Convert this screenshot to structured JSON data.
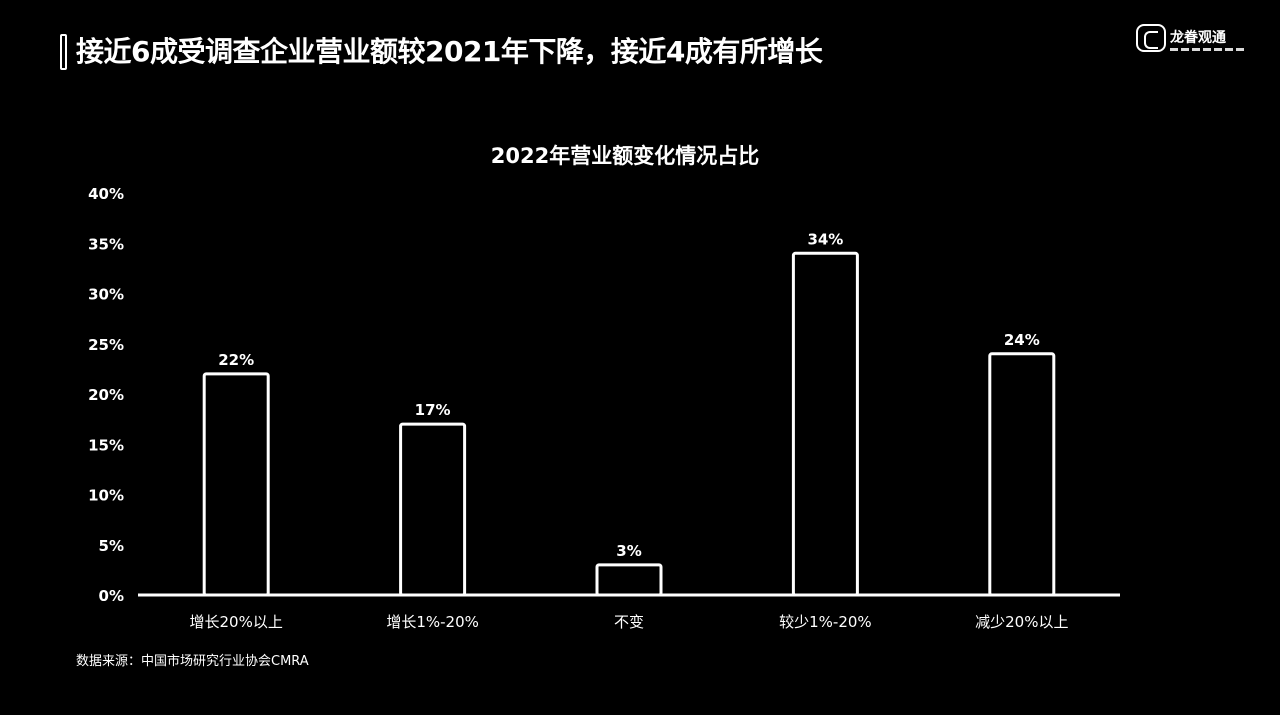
{
  "header": {
    "title": "接近6成受调查企业营业额较2021年下降，接近4成有所增长"
  },
  "logo": {
    "text": "龙眷观通"
  },
  "source": {
    "text": "数据来源：中国市场研究行业协会CMRA"
  },
  "chart_data": {
    "type": "bar",
    "title": "2022年营业额变化情况占比",
    "categories": [
      "增长20%以上",
      "增长1%-20%",
      "不变",
      "较少1%-20%",
      "减少20%以上"
    ],
    "values": [
      22,
      17,
      3,
      34,
      24
    ],
    "value_labels": [
      "22%",
      "17%",
      "3%",
      "34%",
      "24%"
    ],
    "ylim": [
      0,
      40
    ],
    "yticks": [
      0,
      5,
      10,
      15,
      20,
      25,
      30,
      35,
      40
    ],
    "ytick_labels": [
      "0%",
      "5%",
      "10%",
      "15%",
      "20%",
      "25%",
      "30%",
      "35%",
      "40%"
    ],
    "xlabel": "",
    "ylabel": "",
    "grid": false,
    "legend": "none"
  }
}
